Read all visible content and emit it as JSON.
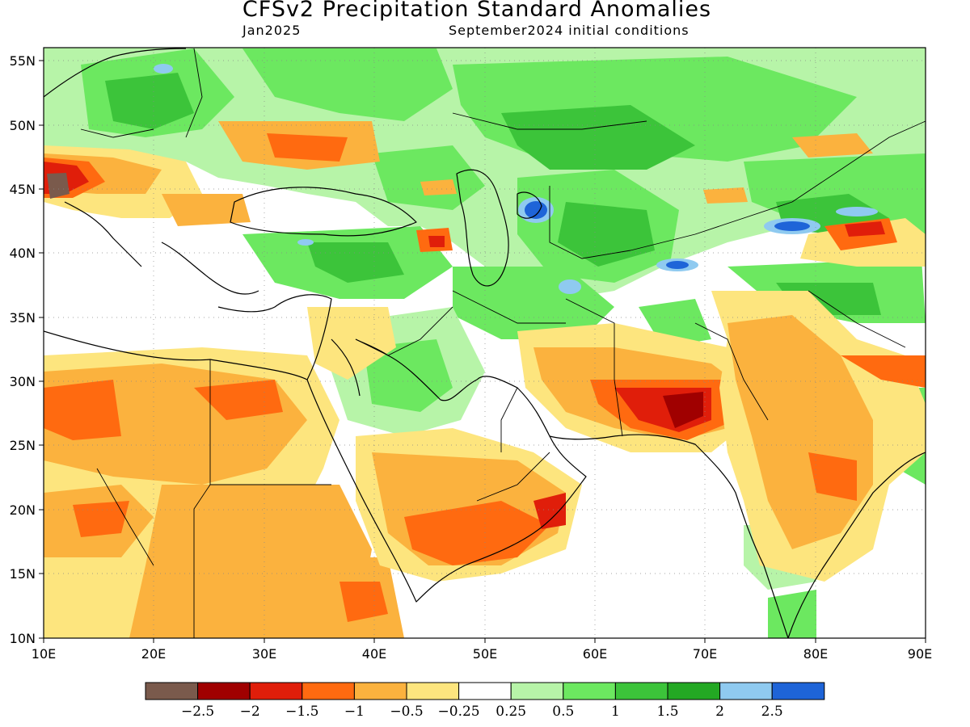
{
  "header": {
    "title": "CFSv2 Precipitation Standard Anomalies",
    "valid_month": "Jan2025",
    "initial_conditions": "September2024 initial conditions"
  },
  "axes": {
    "lat_labels": [
      "10N",
      "15N",
      "20N",
      "25N",
      "30N",
      "35N",
      "40N",
      "45N",
      "50N",
      "55N"
    ],
    "lon_labels": [
      "10E",
      "20E",
      "30E",
      "40E",
      "50E",
      "60E",
      "70E",
      "80E",
      "90E"
    ],
    "lat_range": [
      10,
      56
    ],
    "lon_range": [
      10,
      90
    ]
  },
  "colorbar": {
    "colors": [
      "#7a5a4c",
      "#a00000",
      "#e01e0a",
      "#ff6a10",
      "#fbb23e",
      "#fde57e",
      "#ffffff",
      "#b7f4a8",
      "#6ce860",
      "#3cc43a",
      "#23a823",
      "#8fcaf0",
      "#1e64d8"
    ],
    "labels": [
      "−2.5",
      "−2",
      "−1.5",
      "−1",
      "−0.5",
      "−0.25",
      "0.25",
      "0.5",
      "1",
      "1.5",
      "2",
      "2.5"
    ]
  },
  "legend_colors": {
    "very_dry": "#a00000",
    "dry": "#ff6a10",
    "moderately_dry": "#fbb23e",
    "slightly_dry": "#fde57e",
    "near_normal": "#ffffff",
    "slightly_wet": "#b7f4a8",
    "wet": "#3cc43a",
    "very_wet": "#1e64d8"
  }
}
